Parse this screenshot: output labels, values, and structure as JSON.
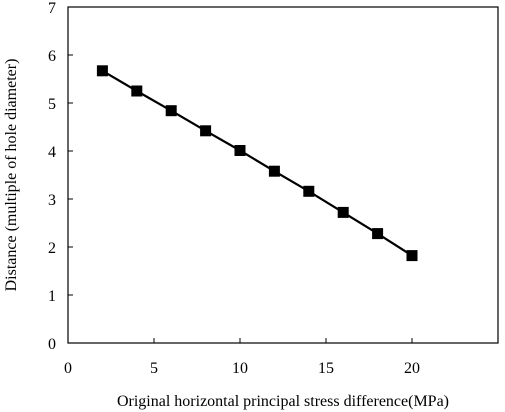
{
  "chart_data": {
    "type": "line",
    "xlabel": "Original horizontal principal stress difference(MPa)",
    "ylabel": "Distance (multiple of hole diameter)",
    "xlim": [
      0,
      25
    ],
    "ylim": [
      0,
      7
    ],
    "x_ticks": [
      0,
      5,
      10,
      15,
      20
    ],
    "y_ticks": [
      0,
      1,
      2,
      3,
      4,
      5,
      6,
      7
    ],
    "grid": false,
    "marker": "square",
    "series": [
      {
        "x": [
          2,
          4,
          6,
          8,
          10,
          12,
          14,
          16,
          18,
          20
        ],
        "y": [
          5.67,
          5.25,
          4.84,
          4.42,
          4.01,
          3.58,
          3.16,
          2.72,
          2.28,
          1.82
        ]
      }
    ],
    "colors": {
      "line": "#000000",
      "marker": "#000000",
      "frame": "#000000"
    }
  }
}
